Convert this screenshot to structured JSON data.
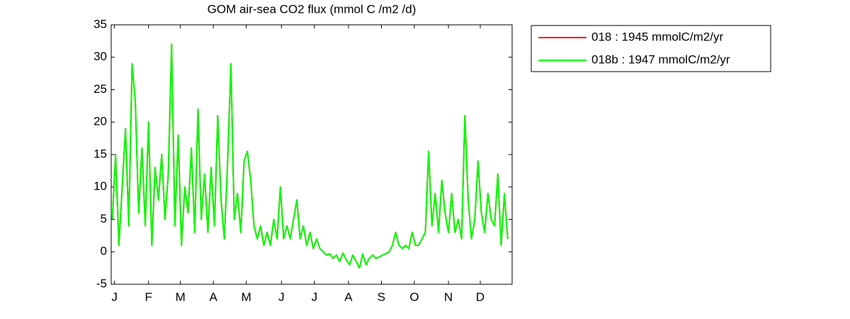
{
  "chart_data": {
    "type": "line",
    "title": "GOM  air-sea CO2 flux (mmol C /m2 /d)",
    "x": [
      1,
      4,
      7,
      10,
      13,
      16,
      19,
      22,
      25,
      28,
      31,
      34,
      37,
      40,
      43,
      46,
      49,
      52,
      55,
      58,
      61,
      64,
      67,
      70,
      73,
      76,
      79,
      82,
      85,
      88,
      91,
      94,
      97,
      100,
      103,
      106,
      109,
      112,
      115,
      118,
      121,
      124,
      127,
      130,
      133,
      136,
      139,
      142,
      145,
      148,
      151,
      154,
      157,
      160,
      163,
      166,
      169,
      172,
      175,
      178,
      181,
      184,
      187,
      190,
      193,
      196,
      199,
      202,
      205,
      208,
      211,
      214,
      217,
      220,
      223,
      226,
      229,
      232,
      235,
      238,
      241,
      244,
      247,
      250,
      253,
      256,
      259,
      262,
      265,
      268,
      271,
      274,
      277,
      280,
      283,
      286,
      289,
      292,
      295,
      298,
      301,
      304,
      307,
      310,
      313,
      316,
      319,
      322,
      325,
      328,
      331,
      334,
      337,
      340,
      343,
      346,
      349,
      352,
      355,
      358,
      361
    ],
    "series": [
      {
        "name": "018 : 1945 mmolC/m2/yr",
        "color": "#ff0000",
        "values": [
          5,
          15,
          1,
          10,
          19,
          4,
          29,
          23,
          6,
          16,
          4,
          20,
          1,
          13,
          8,
          15,
          5,
          12,
          32,
          4,
          18,
          1,
          10,
          6,
          16,
          3,
          22,
          5,
          12,
          3,
          13,
          4,
          21,
          8,
          2,
          14,
          29,
          5,
          9,
          3,
          14,
          15.5,
          11,
          4,
          2,
          4,
          1,
          3,
          1,
          5,
          2,
          10,
          2,
          4,
          2,
          5,
          8,
          2,
          4,
          1,
          3,
          0.5,
          2,
          0.5,
          0,
          -0.5,
          -0.3,
          -1,
          -0.5,
          -1.5,
          -0.2,
          -1.2,
          -2,
          -0.5,
          -1.5,
          -2.5,
          -0.3,
          -2,
          -1,
          -0.5,
          -1,
          -0.8,
          -0.5,
          -0.3,
          0,
          1,
          3,
          1,
          0.5,
          1,
          0.5,
          3,
          1,
          1,
          2,
          3,
          15.5,
          4,
          9,
          3,
          11,
          6,
          3,
          9,
          3,
          5,
          2,
          21,
          8,
          2,
          5,
          14,
          6,
          3,
          9,
          5,
          4,
          12,
          1,
          9,
          2
        ]
      },
      {
        "name": "018b : 1947 mmolC/m2/yr",
        "color": "#00ff00",
        "values": [
          5,
          15,
          1,
          10,
          19,
          4,
          29,
          23,
          6,
          16,
          4,
          20,
          1,
          13,
          8,
          15,
          5,
          12,
          32,
          4,
          18,
          1,
          10,
          6,
          16,
          3,
          22,
          5,
          12,
          3,
          13,
          4,
          21,
          8,
          2,
          14,
          29,
          5,
          9,
          3,
          14,
          15.5,
          11,
          4,
          2,
          4,
          1,
          3,
          1,
          5,
          2,
          10,
          2,
          4,
          2,
          5,
          8,
          2,
          4,
          1,
          3,
          0.5,
          2,
          0.5,
          0,
          -0.5,
          -0.3,
          -1,
          -0.5,
          -1.5,
          -0.2,
          -1.2,
          -2,
          -0.5,
          -1.5,
          -2.5,
          -0.3,
          -2,
          -1,
          -0.5,
          -1,
          -0.8,
          -0.5,
          -0.3,
          0,
          1,
          3,
          1,
          0.5,
          1,
          0.5,
          3,
          1,
          1,
          2,
          3,
          15.5,
          4,
          9,
          3,
          11,
          6,
          3,
          9,
          3,
          5,
          2,
          21,
          8,
          2,
          5,
          14,
          6,
          3,
          9,
          5,
          4,
          12,
          1,
          9,
          2
        ]
      }
    ],
    "xlim": [
      0,
      365
    ],
    "xticks": [
      {
        "value": 3,
        "label": "J"
      },
      {
        "value": 34,
        "label": "F"
      },
      {
        "value": 63,
        "label": "M"
      },
      {
        "value": 93,
        "label": "A"
      },
      {
        "value": 123,
        "label": "M"
      },
      {
        "value": 155,
        "label": "J"
      },
      {
        "value": 185,
        "label": "J"
      },
      {
        "value": 216,
        "label": "A"
      },
      {
        "value": 246,
        "label": "S"
      },
      {
        "value": 276,
        "label": "O"
      },
      {
        "value": 307,
        "label": "N"
      },
      {
        "value": 336,
        "label": "D"
      }
    ],
    "ylim": [
      -5,
      35
    ],
    "yticks": [
      -5,
      0,
      5,
      10,
      15,
      20,
      25,
      30,
      35
    ],
    "grid": false,
    "legend": "outside-right"
  }
}
